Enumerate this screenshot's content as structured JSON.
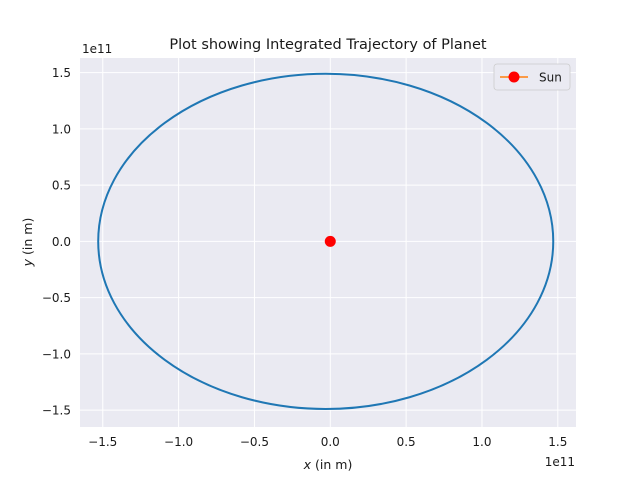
{
  "chart_data": {
    "type": "line",
    "title": "Plot showing Integrated Trajectory of Planet",
    "xlabel_var": "x",
    "xlabel_rest": " (in m)",
    "ylabel_var": "y",
    "ylabel_rest": " (in m)",
    "x_offset_text": "1e11",
    "y_offset_text": "1e11",
    "xlim": [
      -165000000000.0,
      162000000000.0
    ],
    "ylim": [
      -165000000000.0,
      163000000000.0
    ],
    "xticks": [
      -150000000000.0,
      -100000000000.0,
      -50000000000.0,
      0,
      50000000000.0,
      100000000000.0,
      150000000000.0
    ],
    "xtick_labels": [
      "−1.5",
      "−1.0",
      "−0.5",
      "0.0",
      "0.5",
      "1.0",
      "1.5"
    ],
    "yticks": [
      -150000000000.0,
      -100000000000.0,
      -50000000000.0,
      0,
      50000000000.0,
      100000000000.0,
      150000000000.0
    ],
    "ytick_labels": [
      "−1.5",
      "−1.0",
      "−0.5",
      "0.0",
      "0.5",
      "1.0",
      "1.5"
    ],
    "grid": true,
    "legend_placement": "top-right",
    "series": [
      {
        "kind": "orbit",
        "color": "#1f77b4",
        "center": [
          -3000000000.0,
          0
        ],
        "semi_axes": [
          150000000000.0,
          149000000000.0
        ]
      },
      {
        "name": "Sun",
        "kind": "point",
        "color": "#ff0000",
        "line_color": "#ff7f0e",
        "x": [
          0
        ],
        "y": [
          0
        ]
      }
    ],
    "colors": {
      "axes_background": "#eaeaf2",
      "grid": "#ffffff"
    }
  }
}
